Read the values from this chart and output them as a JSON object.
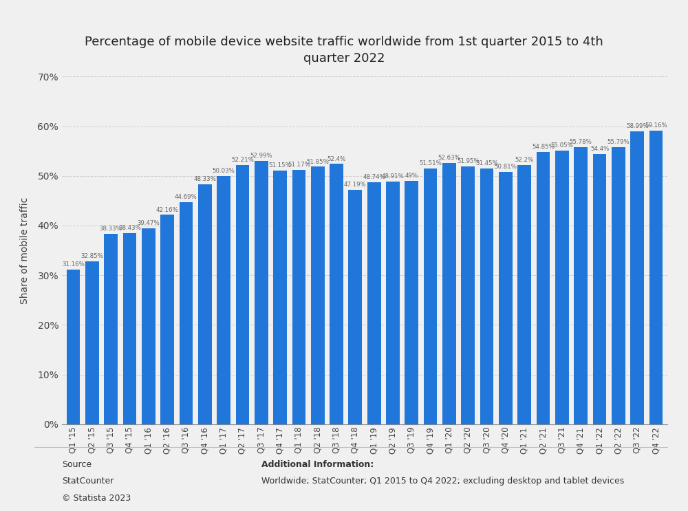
{
  "title": "Percentage of mobile device website traffic worldwide from 1st quarter 2015 to 4th\nquarter 2022",
  "ylabel": "Share of mobile traffic",
  "bar_color": "#2176d9",
  "background_color": "#f0f0f0",
  "plot_background": "#f0f0f0",
  "categories": [
    "Q1 '15",
    "Q2 '15",
    "Q3 '15",
    "Q4 '15",
    "Q1 '16",
    "Q2 '16",
    "Q3 '16",
    "Q4 '16",
    "Q1 '17",
    "Q2 '17",
    "Q3 '17",
    "Q4 '17",
    "Q1 '18",
    "Q2 '18",
    "Q3 '18",
    "Q4 '18",
    "Q1 '19",
    "Q2 '19",
    "Q3 '19",
    "Q4 '19",
    "Q1 '20",
    "Q2 '20",
    "Q3 '20",
    "Q4 '20",
    "Q1 '21",
    "Q2 '21",
    "Q3 '21",
    "Q4 '21",
    "Q1 '22",
    "Q2 '22",
    "Q3 '22",
    "Q4 '22"
  ],
  "values": [
    31.16,
    32.85,
    38.33,
    38.43,
    39.47,
    42.16,
    44.69,
    48.33,
    50.03,
    52.21,
    52.99,
    51.15,
    51.17,
    51.85,
    52.4,
    47.19,
    48.74,
    48.91,
    49.0,
    51.51,
    52.63,
    51.95,
    51.45,
    50.81,
    52.2,
    54.85,
    55.05,
    55.78,
    54.4,
    55.79,
    58.99,
    59.16
  ],
  "value_labels": [
    "31.16%",
    "32.85%",
    "38.33%",
    "38.43%",
    "39.47%",
    "42.16%",
    "44.69%",
    "48.33%",
    "50.03%",
    "52.21%",
    "52.99%",
    "51.15%",
    "51.17%",
    "51.85%",
    "52.4%",
    "47.19%",
    "48.74%",
    "48.91%",
    "49%",
    "51.51%",
    "52.63%",
    "51.95%",
    "51.45%",
    "50.81%",
    "52.2%",
    "54.85%",
    "55.05%",
    "55.78%",
    "54.4%",
    "55.79%",
    "58.99%",
    "59.16%"
  ],
  "ylim": [
    0,
    70
  ],
  "yticks": [
    0,
    10,
    20,
    30,
    40,
    50,
    60,
    70
  ],
  "source_label": "Source",
  "source_name": "StatCounter",
  "source_copy": "© Statista 2023",
  "additional_info_title": "Additional Information:",
  "additional_info_text": "Worldwide; StatCounter; Q1 2015 to Q4 2022; excluding desktop and tablet devices"
}
